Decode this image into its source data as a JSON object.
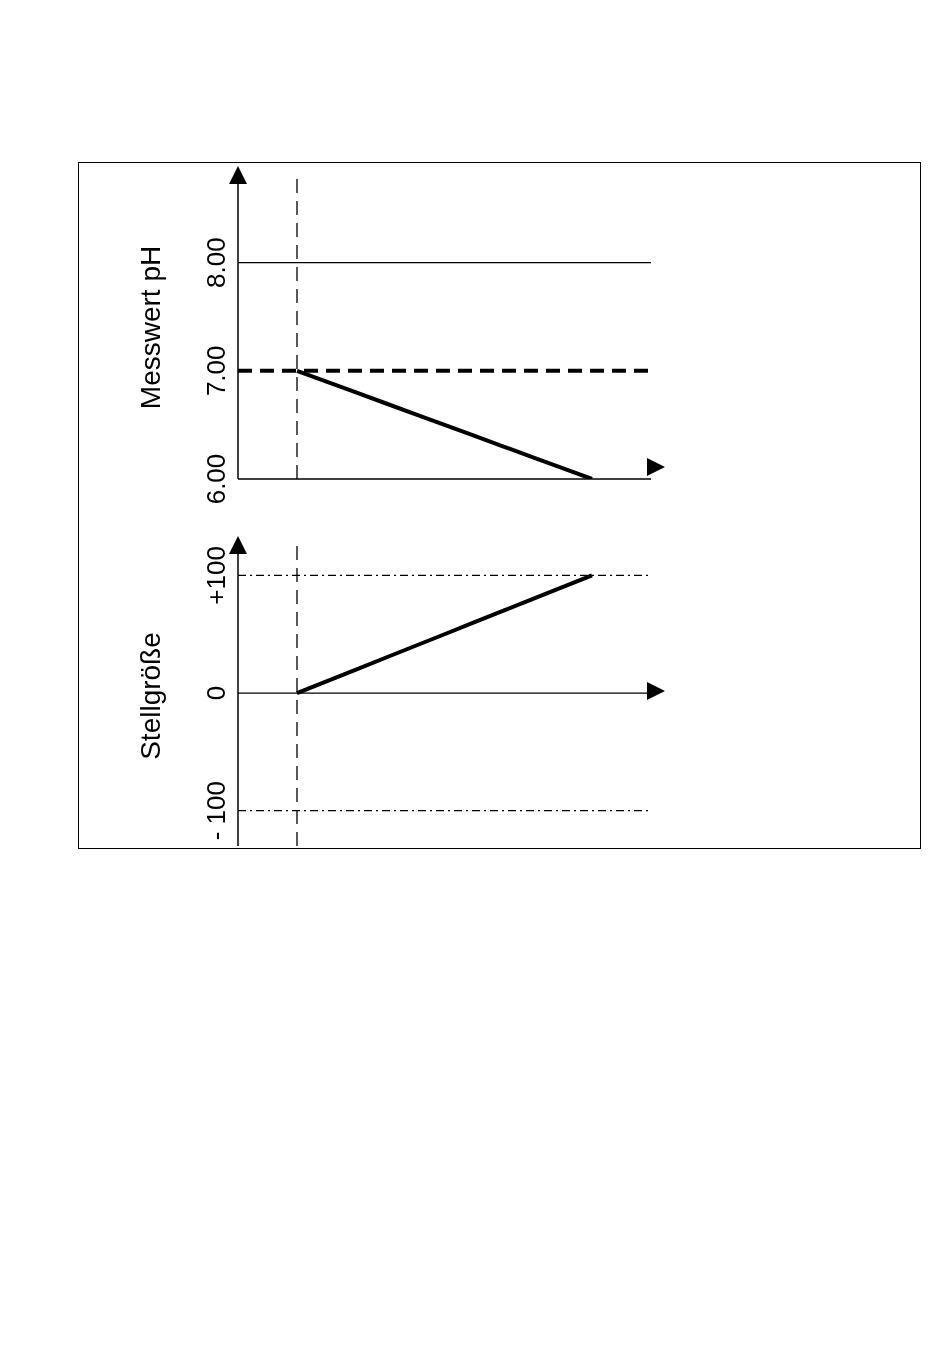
{
  "chart_data": [
    {
      "type": "line",
      "ylabel": "Messwert pH",
      "categories": [
        null,
        null,
        null,
        null,
        null,
        null,
        null,
        null,
        null,
        null,
        null,
        null,
        null,
        null,
        null
      ],
      "ylim": [
        6,
        8.8
      ],
      "yticks": [
        {
          "value": 6,
          "label": "6.00"
        },
        {
          "value": 7,
          "label": "7.00"
        },
        {
          "value": 8,
          "label": "8.00"
        }
      ],
      "tick_labels": "y",
      "grid": false,
      "legend": false,
      "marker": "none",
      "series": [
        {
          "color": "#000000",
          "values": [
            null,
            null,
            7,
            6.9,
            6.8,
            6.7,
            6.6,
            6.5,
            6.4,
            6.3,
            6.2,
            6.1,
            6,
            null,
            null
          ]
        }
      ],
      "ref_lines": [
        {
          "axis": "y",
          "value": 8,
          "color": "#000000",
          "line_style": "solid"
        },
        {
          "axis": "y",
          "value": 7,
          "color": "#000000",
          "line_style": "dashed"
        },
        {
          "axis": "x",
          "color": "#000000",
          "line_style": "dashed"
        }
      ]
    },
    {
      "type": "line",
      "ylabel": "Stellgröße",
      "categories": [
        null,
        null,
        null,
        null,
        null,
        null,
        null,
        null,
        null,
        null,
        null,
        null,
        null,
        null,
        null
      ],
      "ylim": [
        -130,
        125
      ],
      "yticks": [
        {
          "value": -100,
          "label": "- 100"
        },
        0,
        {
          "value": 100,
          "label": "+100"
        }
      ],
      "tick_labels": "y",
      "grid": false,
      "legend": false,
      "marker": "none",
      "series": [
        {
          "color": "#000000",
          "values": [
            null,
            null,
            0,
            10,
            20,
            30,
            40,
            50,
            60,
            70,
            80,
            90,
            100,
            null,
            null
          ]
        }
      ],
      "ref_lines": [
        {
          "axis": "y",
          "value": 0,
          "color": "#000000",
          "line_style": "solid"
        },
        {
          "axis": "y",
          "value": 100,
          "color": "#000000",
          "line_style": "dotted"
        },
        {
          "axis": "y",
          "value": -100,
          "color": "#000000",
          "line_style": "dotted"
        },
        {
          "axis": "x",
          "color": "#000000",
          "line_style": "dashed"
        }
      ]
    }
  ]
}
